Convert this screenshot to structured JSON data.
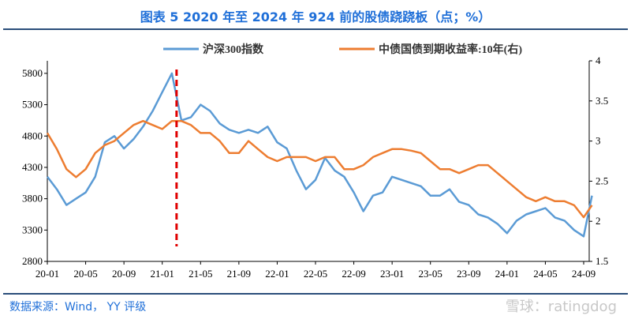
{
  "header": {
    "title": "图表 5 2020 年至 2024 年 924 前的股债跷跷板（点；%）"
  },
  "footer": {
    "source": "数据来源：Wind， YY 评级",
    "watermark": "雪球：ratingdog"
  },
  "chart_data": {
    "type": "line",
    "title": "图表 5 2020 年至 2024 年 924 前的股债跷跷板（点；%）",
    "legend_position": "top",
    "grid": false,
    "x_ticks": [
      "20-01",
      "20-05",
      "20-09",
      "21-01",
      "21-05",
      "21-09",
      "22-01",
      "22-05",
      "22-09",
      "23-01",
      "23-05",
      "23-09",
      "24-01",
      "24-05",
      "24-09"
    ],
    "y_left": {
      "ticks": [
        2800,
        3300,
        3800,
        4300,
        4800,
        5300,
        5800
      ],
      "ylim": [
        2800,
        6000
      ]
    },
    "y_right": {
      "ticks": [
        1.5,
        2,
        2.5,
        3,
        3.5,
        4
      ],
      "ylim": [
        1.5,
        4
      ]
    },
    "x": [
      "2020-01",
      "2020-02",
      "2020-03",
      "2020-04",
      "2020-05",
      "2020-06",
      "2020-07",
      "2020-08",
      "2020-09",
      "2020-10",
      "2020-11",
      "2020-12",
      "2021-01",
      "2021-02",
      "2021-03",
      "2021-04",
      "2021-05",
      "2021-06",
      "2021-07",
      "2021-08",
      "2021-09",
      "2021-10",
      "2021-11",
      "2021-12",
      "2022-01",
      "2022-02",
      "2022-03",
      "2022-04",
      "2022-05",
      "2022-06",
      "2022-07",
      "2022-08",
      "2022-09",
      "2022-10",
      "2022-11",
      "2022-12",
      "2023-01",
      "2023-02",
      "2023-03",
      "2023-04",
      "2023-05",
      "2023-06",
      "2023-07",
      "2023-08",
      "2023-09",
      "2023-10",
      "2023-11",
      "2023-12",
      "2024-01",
      "2024-02",
      "2024-03",
      "2024-04",
      "2024-05",
      "2024-06",
      "2024-07",
      "2024-08",
      "2024-09",
      "2024-09-27"
    ],
    "series": [
      {
        "name": "沪深300指数",
        "axis": "left",
        "color": "#5b9bd5",
        "values": [
          4150,
          3950,
          3700,
          3800,
          3900,
          4150,
          4700,
          4800,
          4600,
          4750,
          4950,
          5200,
          5500,
          5800,
          5050,
          5100,
          5300,
          5200,
          5000,
          4900,
          4850,
          4900,
          4850,
          4950,
          4700,
          4600,
          4250,
          3950,
          4100,
          4450,
          4250,
          4150,
          3900,
          3600,
          3850,
          3900,
          4150,
          4100,
          4050,
          4000,
          3850,
          3850,
          3950,
          3750,
          3700,
          3550,
          3500,
          3400,
          3250,
          3450,
          3550,
          3600,
          3650,
          3500,
          3450,
          3300,
          3200,
          3850
        ]
      },
      {
        "name": "中债国债到期收益率:10年(右)",
        "axis": "right",
        "color": "#ed7d31",
        "values": [
          3.1,
          2.9,
          2.65,
          2.55,
          2.65,
          2.85,
          2.95,
          3.0,
          3.1,
          3.2,
          3.25,
          3.2,
          3.15,
          3.25,
          3.25,
          3.2,
          3.1,
          3.1,
          3.0,
          2.85,
          2.85,
          3.0,
          2.9,
          2.8,
          2.75,
          2.8,
          2.8,
          2.8,
          2.75,
          2.8,
          2.8,
          2.65,
          2.65,
          2.7,
          2.8,
          2.85,
          2.9,
          2.9,
          2.88,
          2.85,
          2.75,
          2.65,
          2.65,
          2.6,
          2.65,
          2.7,
          2.7,
          2.6,
          2.5,
          2.4,
          2.3,
          2.25,
          2.3,
          2.25,
          2.25,
          2.2,
          2.05,
          2.2
        ]
      }
    ],
    "annotations": [
      {
        "type": "vertical-dashed-line",
        "x": "2021-02",
        "color": "#e00000"
      }
    ]
  }
}
